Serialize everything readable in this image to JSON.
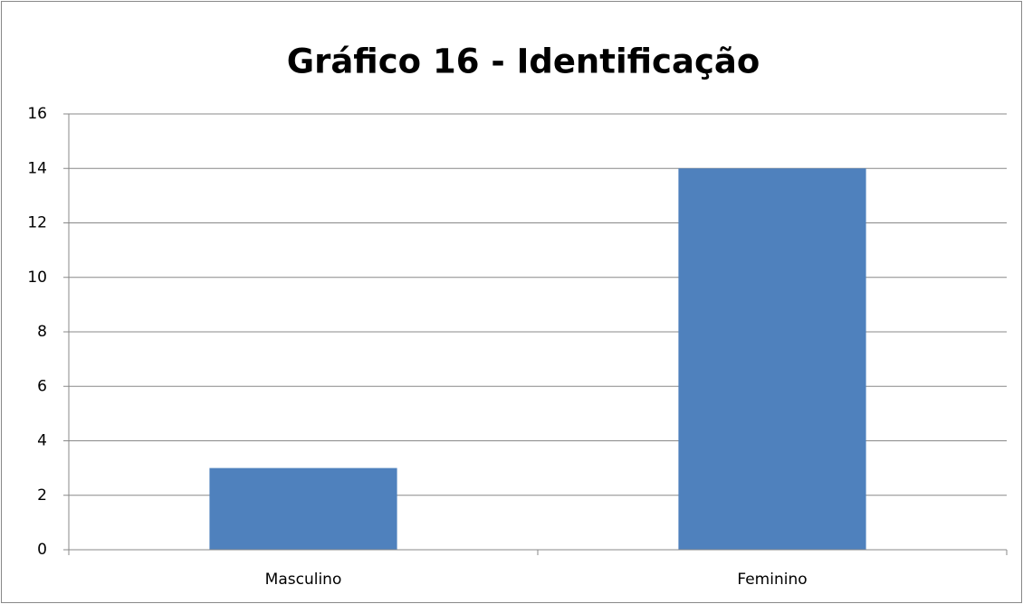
{
  "chart_data": {
    "type": "bar",
    "title": "Gráfico 16 - Identificação",
    "categories": [
      "Masculino",
      "Feminino"
    ],
    "values": [
      3,
      14
    ],
    "color": "#4f81bd",
    "ylim": [
      0,
      16
    ],
    "yticks": [
      0,
      2,
      4,
      6,
      8,
      10,
      12,
      14,
      16
    ],
    "grid": true
  }
}
